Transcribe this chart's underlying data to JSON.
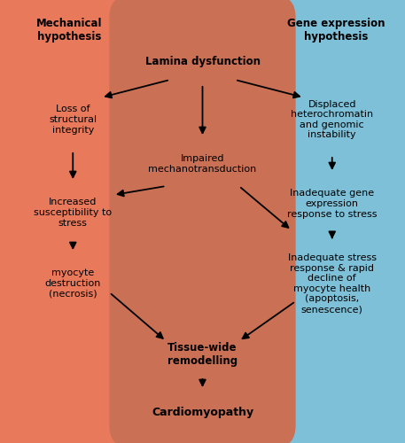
{
  "fig_width": 4.57,
  "fig_height": 5.0,
  "dpi": 100,
  "bg_color": "#ffffff",
  "left_box_color": "#E8795A",
  "right_box_color": "#7DC0D8",
  "center_box_color": "#C97055",
  "border_color": "#888888",
  "title_left": "Mechanical\nhypothesis",
  "title_right": "Gene expression\nhypothesis",
  "node_lamina": "Lamina dysfunction",
  "node_loss": "Loss of\nstructural\nintegrity",
  "node_impaired": "Impaired\nmechanotransduction",
  "node_displaced": "Displaced\nheterochromatin\nand genomic\ninstability",
  "node_susceptibility": "Increased\nsusceptibility to\nstress",
  "node_inadequate_gene": "Inadequate gene\nexpression\nresponse to stress",
  "node_myocyte_dest": "myocyte\ndestruction\n(necrosis)",
  "node_inadequate_stress": "Inadequate stress\nresponse & rapid\ndecline of\nmyocyte health\n(apoptosis,\nsenescence)",
  "node_tissue": "Tissue-wide\nremodelling",
  "node_cardio": "Cardiomyopathy"
}
